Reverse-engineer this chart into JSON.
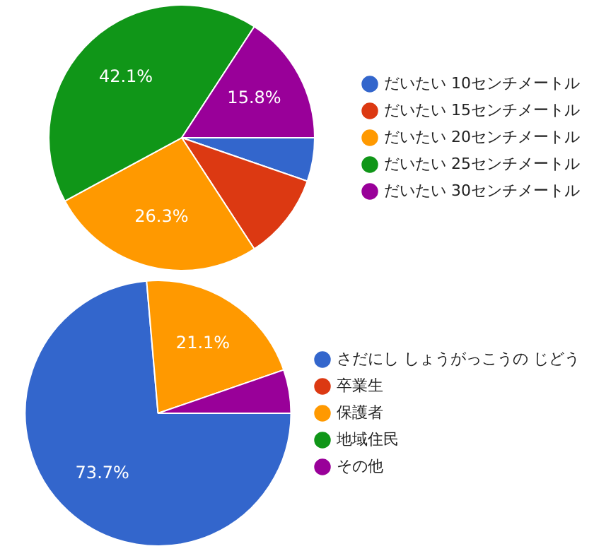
{
  "chart_data": [
    {
      "type": "pie",
      "categories": [
        "だいたい 10センチメートル",
        "だいたい 15センチメートル",
        "だいたい 20センチメートル",
        "だいたい 25センチメートル",
        "だいたい 30センチメートル"
      ],
      "values": [
        5.3,
        10.5,
        26.3,
        42.1,
        15.8
      ],
      "colors": [
        "#3366cc",
        "#dc3912",
        "#ff9900",
        "#109618",
        "#990099"
      ],
      "value_labels": [
        null,
        null,
        "26.3%",
        "42.1%",
        "15.8%"
      ],
      "legend": "right"
    },
    {
      "type": "pie",
      "categories": [
        "さだにし しょうがっこうの じどう",
        "卒業生",
        "保護者",
        "地域住民",
        "その他"
      ],
      "values": [
        73.7,
        0,
        21.1,
        0,
        5.3
      ],
      "colors": [
        "#3366cc",
        "#dc3912",
        "#ff9900",
        "#109618",
        "#990099"
      ],
      "value_labels": [
        "73.7%",
        null,
        "21.1%",
        null,
        null
      ],
      "legend": "right"
    }
  ]
}
